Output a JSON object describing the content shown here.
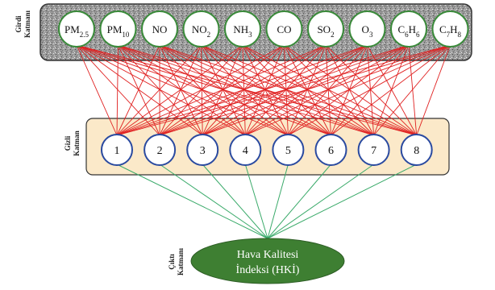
{
  "layers": {
    "input_label": [
      "Girdi",
      "Katmanı"
    ],
    "hidden_label": [
      "Gizli",
      "Katman"
    ],
    "output_label": [
      "Çıktı",
      "Katmanı"
    ]
  },
  "inputs": [
    {
      "base": "PM",
      "sub": "2.5"
    },
    {
      "base": "PM",
      "sub": "10"
    },
    {
      "base": "NO"
    },
    {
      "base": "NO",
      "sub": "2"
    },
    {
      "base": "NH",
      "sub": "3"
    },
    {
      "base": "CO"
    },
    {
      "base": "SO",
      "sub": "2"
    },
    {
      "base": "O",
      "sub": "3"
    },
    {
      "base": "C",
      "sub": "6",
      "base2": "H",
      "sub2": "6"
    },
    {
      "base": "C",
      "sub": "7",
      "base2": "H",
      "sub2": "8"
    }
  ],
  "hidden": [
    "1",
    "2",
    "3",
    "4",
    "5",
    "6",
    "7",
    "8"
  ],
  "output": {
    "lines": [
      "Hava Kalitesi",
      "İndeksi (HKİ)"
    ]
  },
  "colors": {
    "input_node_border": "#3a8a3a",
    "input_edge": "#e02020",
    "hidden_node_border": "#2a4aa0",
    "hidden_panel_fill": "#fbe9c9",
    "output_edge": "#3aaa6a",
    "output_fill": "#3e7f32",
    "output_text": "#ffffff"
  }
}
